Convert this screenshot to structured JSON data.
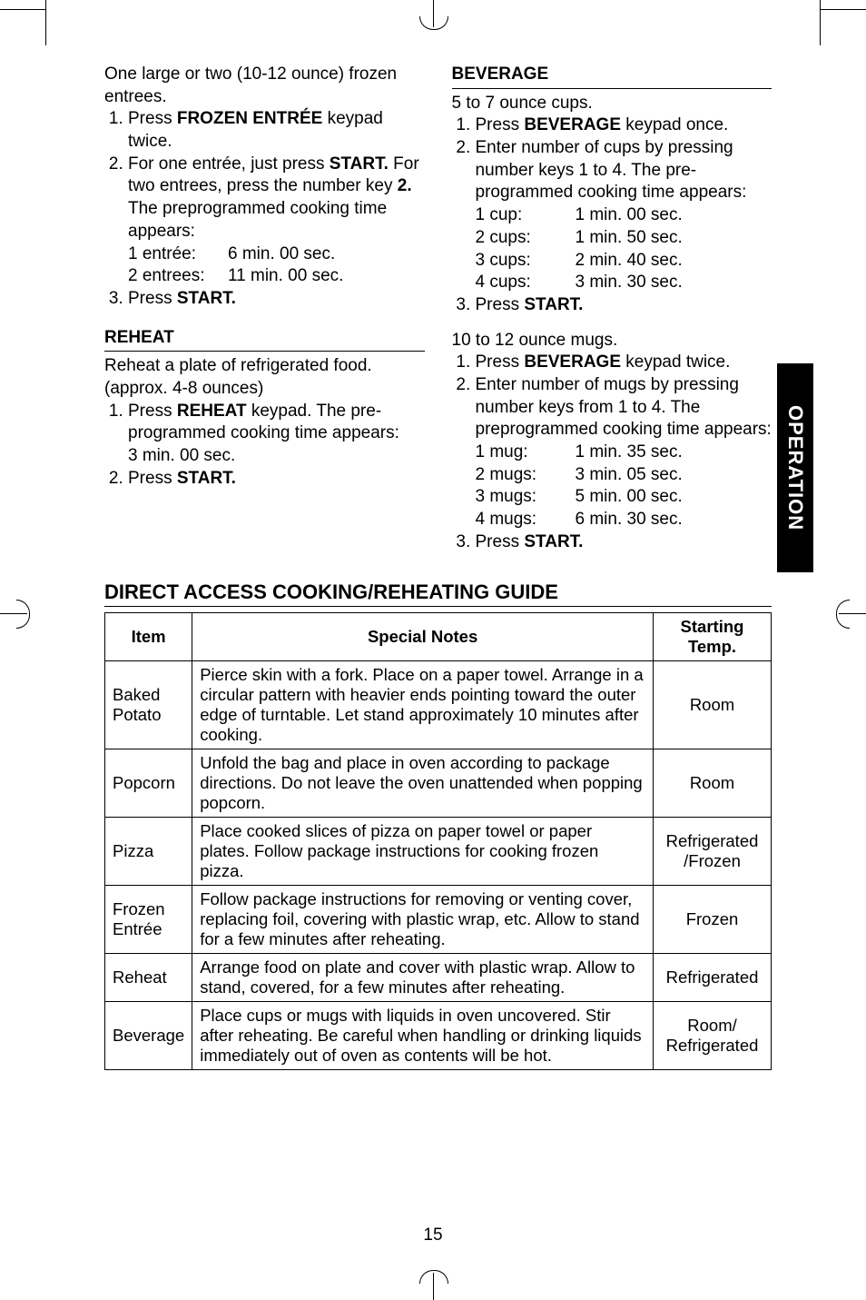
{
  "left": {
    "intro": "One large or two (10-12 ounce) frozen entrees.",
    "steps": {
      "s1_a": "Press ",
      "s1_b": "FROZEN ENTRÉE",
      "s1_c": " keypad twice.",
      "s2_a": "For one entrée, just press ",
      "s2_b": "START.",
      "s2_c": "  For two entrees, press the number key ",
      "s2_d": "2.",
      "s2_e": "The preprogrammed cooking time appears:",
      "t1l": "1 entrée:",
      "t1v": "6 min. 00 sec.",
      "t2l": "2 entrees:",
      "t2v": "11 min. 00 sec.",
      "s3_a": "Press ",
      "s3_b": "START."
    },
    "reheat_head": "REHEAT",
    "reheat_intro": "Reheat a plate of refrigerated food. (approx. 4-8 ounces)",
    "reheat": {
      "r1_a": "Press ",
      "r1_b": "REHEAT",
      "r1_c": " keypad. The pre-programmed cooking time appears:",
      "r1_d": "3 min. 00 sec.",
      "r2_a": "Press ",
      "r2_b": "START."
    }
  },
  "right": {
    "head": "BEVERAGE",
    "cups_intro": "5 to 7 ounce cups.",
    "cups": {
      "c1_a": "Press ",
      "c1_b": "BEVERAGE",
      "c1_c": " keypad once.",
      "c2": "Enter number of cups by pressing number keys 1 to 4. The pre-programmed cooking time appears:",
      "t1l": "1 cup:",
      "t1v": "1 min. 00 sec.",
      "t2l": "2 cups:",
      "t2v": "1 min. 50 sec.",
      "t3l": "3 cups:",
      "t3v": "2 min. 40 sec.",
      "t4l": "4 cups:",
      "t4v": "3 min. 30 sec.",
      "c3_a": "Press ",
      "c3_b": "START."
    },
    "mugs_intro": "10 to 12 ounce mugs.",
    "mugs": {
      "m1_a": "Press ",
      "m1_b": "BEVERAGE",
      "m1_c": " keypad twice.",
      "m2": "Enter number of mugs by pressing number keys from 1 to 4. The preprogrammed cooking time appears:",
      "t1l": "1 mug:",
      "t1v": "1 min. 35 sec.",
      "t2l": "2 mugs:",
      "t2v": "3 min. 05 sec.",
      "t3l": "3 mugs:",
      "t3v": "5 min. 00 sec.",
      "t4l": "4 mugs:",
      "t4v": "6 min. 30 sec.",
      "m3_a": "Press ",
      "m3_b": "START."
    }
  },
  "side_tab": "OPERATION",
  "guide": {
    "title": "DIRECT ACCESS COOKING/REHEATING GUIDE",
    "header_item": "Item",
    "header_notes": "Special Notes",
    "header_temp_1": "Starting",
    "header_temp_2": "Temp.",
    "rows": [
      {
        "item": "Baked\nPotato",
        "notes": "Pierce skin with a fork.  Place on a paper towel.  Arrange in a circular pattern with heavier ends pointing toward the outer edge of turntable.  Let stand approximately 10 minutes after cooking.",
        "temp": "Room"
      },
      {
        "item": "Popcorn",
        "notes": "Unfold the bag and place in oven according to package directions. Do not leave the oven unattended when popping popcorn.",
        "temp": "Room"
      },
      {
        "item": "Pizza",
        "notes": "Place cooked slices of pizza on paper towel or paper plates.  Follow package instructions for cooking frozen pizza.",
        "temp": "Refrigerated /Frozen"
      },
      {
        "item": "Frozen\nEntrée",
        "notes": "Follow package instructions for removing or venting cover, replacing foil, covering with plastic wrap, etc. Allow to stand for a few minutes after reheating.",
        "temp": "Frozen"
      },
      {
        "item": "Reheat",
        "notes": "Arrange food on plate and cover with plastic wrap. Allow to stand, covered, for a few minutes after reheating.",
        "temp": "Refrigerated"
      },
      {
        "item": "Beverage",
        "notes": "Place cups or mugs with liquids in oven uncovered.  Stir after reheating.  Be careful when handling or drinking liquids immediately out of oven as contents will be hot.",
        "temp": "Room/ Refrigerated"
      }
    ]
  },
  "page_number": "15"
}
